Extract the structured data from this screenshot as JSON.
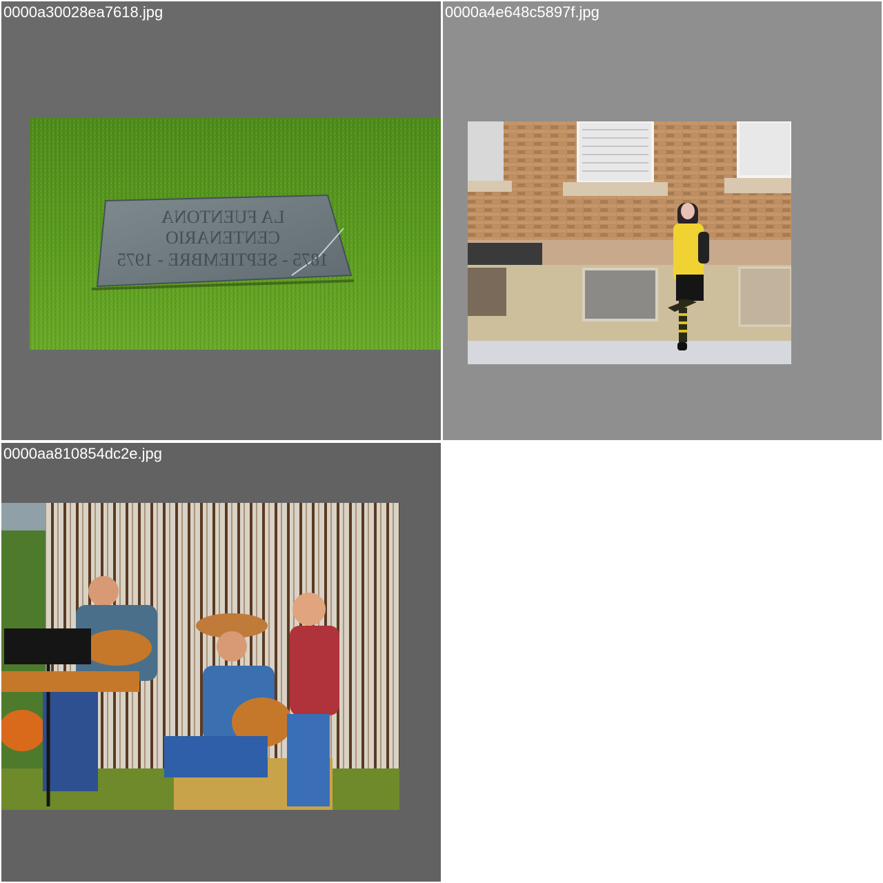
{
  "gallery": {
    "tiles": [
      {
        "filename": "0000a30028ea7618.jpg",
        "plaque_lines": [
          "LA FUENTONA",
          "CENTENARIO",
          "1875 - SEPTIEMBRE - 1975"
        ]
      },
      {
        "filename": "0000a4e648c5897f.jpg"
      },
      {
        "filename": "0000aa810854dc2e.jpg"
      }
    ]
  },
  "colors": {
    "tile1_bg": "#6a6a6a",
    "tile2_bg": "#8f8f8f",
    "tile3_bg": "#626262",
    "label_text": "#ffffff"
  }
}
